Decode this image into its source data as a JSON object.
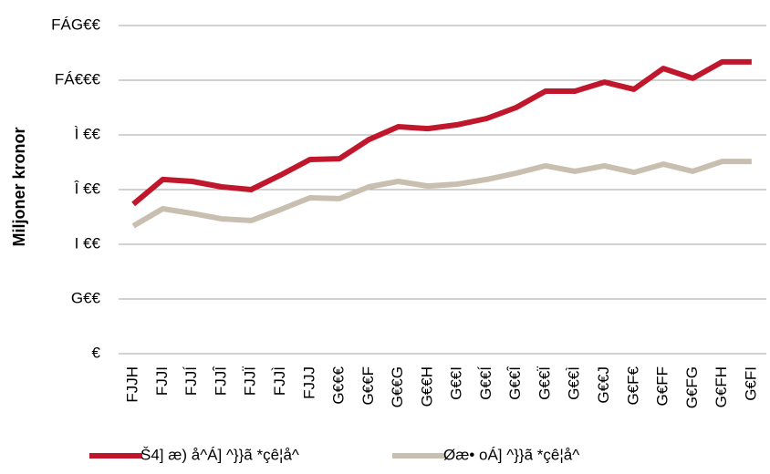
{
  "chart_data": {
    "type": "line",
    "y_axis_label": "Miljoner kronor",
    "categories": [
      "FJJH",
      "FJJI",
      "FJJÍ",
      "FJJÎ",
      "FJJÏ",
      "FJJÌ",
      "FJJJ",
      "G€€€",
      "G€€F",
      "G€€G",
      "G€€H",
      "G€€I",
      "G€€Í",
      "G€€Î",
      "G€€Ï",
      "G€€Ì",
      "G€€J",
      "G€F€",
      "G€FF",
      "G€FG",
      "G€FH",
      "G€FI"
    ],
    "series": [
      {
        "name": "Š4] æ) å^Á] ^}}ã *çê¦å^",
        "color": "#c0172c",
        "values": [
          547,
          637,
          630,
          610,
          600,
          653,
          710,
          713,
          783,
          830,
          823,
          837,
          860,
          900,
          960,
          960,
          993,
          967,
          1043,
          1007,
          1067,
          1067
        ]
      },
      {
        "name": "Øæ• oÁ] ^}}ã *çê¦å^",
        "color": "#c8bfb0",
        "values": [
          467,
          530,
          513,
          493,
          487,
          527,
          570,
          567,
          610,
          630,
          613,
          620,
          637,
          660,
          687,
          667,
          687,
          663,
          693,
          667,
          703,
          703
        ]
      }
    ],
    "ylim": [
      0,
      1200
    ],
    "yticks": [
      {
        "value": 0,
        "label": "€"
      },
      {
        "value": 200,
        "label": "G€€"
      },
      {
        "value": 400,
        "label": "I €€"
      },
      {
        "value": 600,
        "label": "Î €€"
      },
      {
        "value": 800,
        "label": "Ì €€"
      },
      {
        "value": 1000,
        "label": "FÁ€€€"
      },
      {
        "value": 1200,
        "label": "FÁG€€"
      }
    ],
    "grid": true
  }
}
